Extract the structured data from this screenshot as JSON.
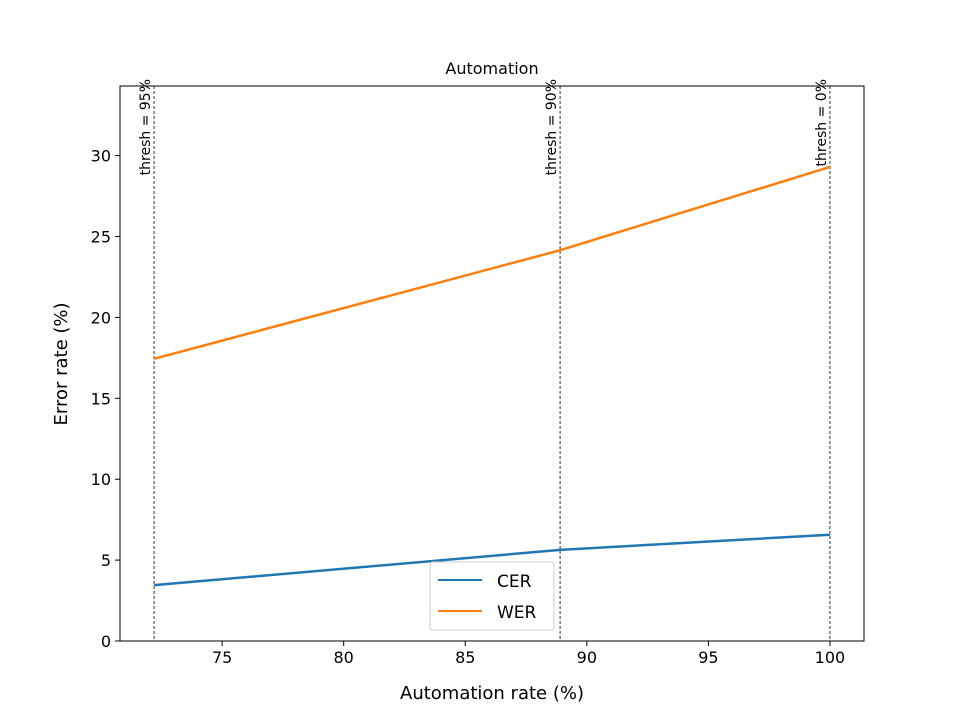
{
  "chart_data": {
    "type": "line",
    "title": "Automation",
    "xlabel": "Automation rate (%)",
    "ylabel": "Error rate (%)",
    "xlim": [
      70.8,
      101.4
    ],
    "ylim": [
      0,
      34.3
    ],
    "xticks": [
      75,
      80,
      85,
      90,
      95,
      100
    ],
    "yticks": [
      0,
      5,
      10,
      15,
      20,
      25,
      30
    ],
    "grid": false,
    "legend_position": "lower center",
    "x": [
      72.2,
      88.9,
      100
    ],
    "series": [
      {
        "name": "CER",
        "color": "#1f77b4",
        "values": [
          3.45,
          5.63,
          6.57
        ]
      },
      {
        "name": "WER",
        "color": "#ff7f0e",
        "values": [
          17.44,
          24.15,
          29.3
        ]
      }
    ],
    "vlines": [
      {
        "x": 72.2,
        "label": "thresh = 95%"
      },
      {
        "x": 88.9,
        "label": "thresh = 90%"
      },
      {
        "x": 100,
        "label": "thresh = 0%"
      }
    ]
  }
}
